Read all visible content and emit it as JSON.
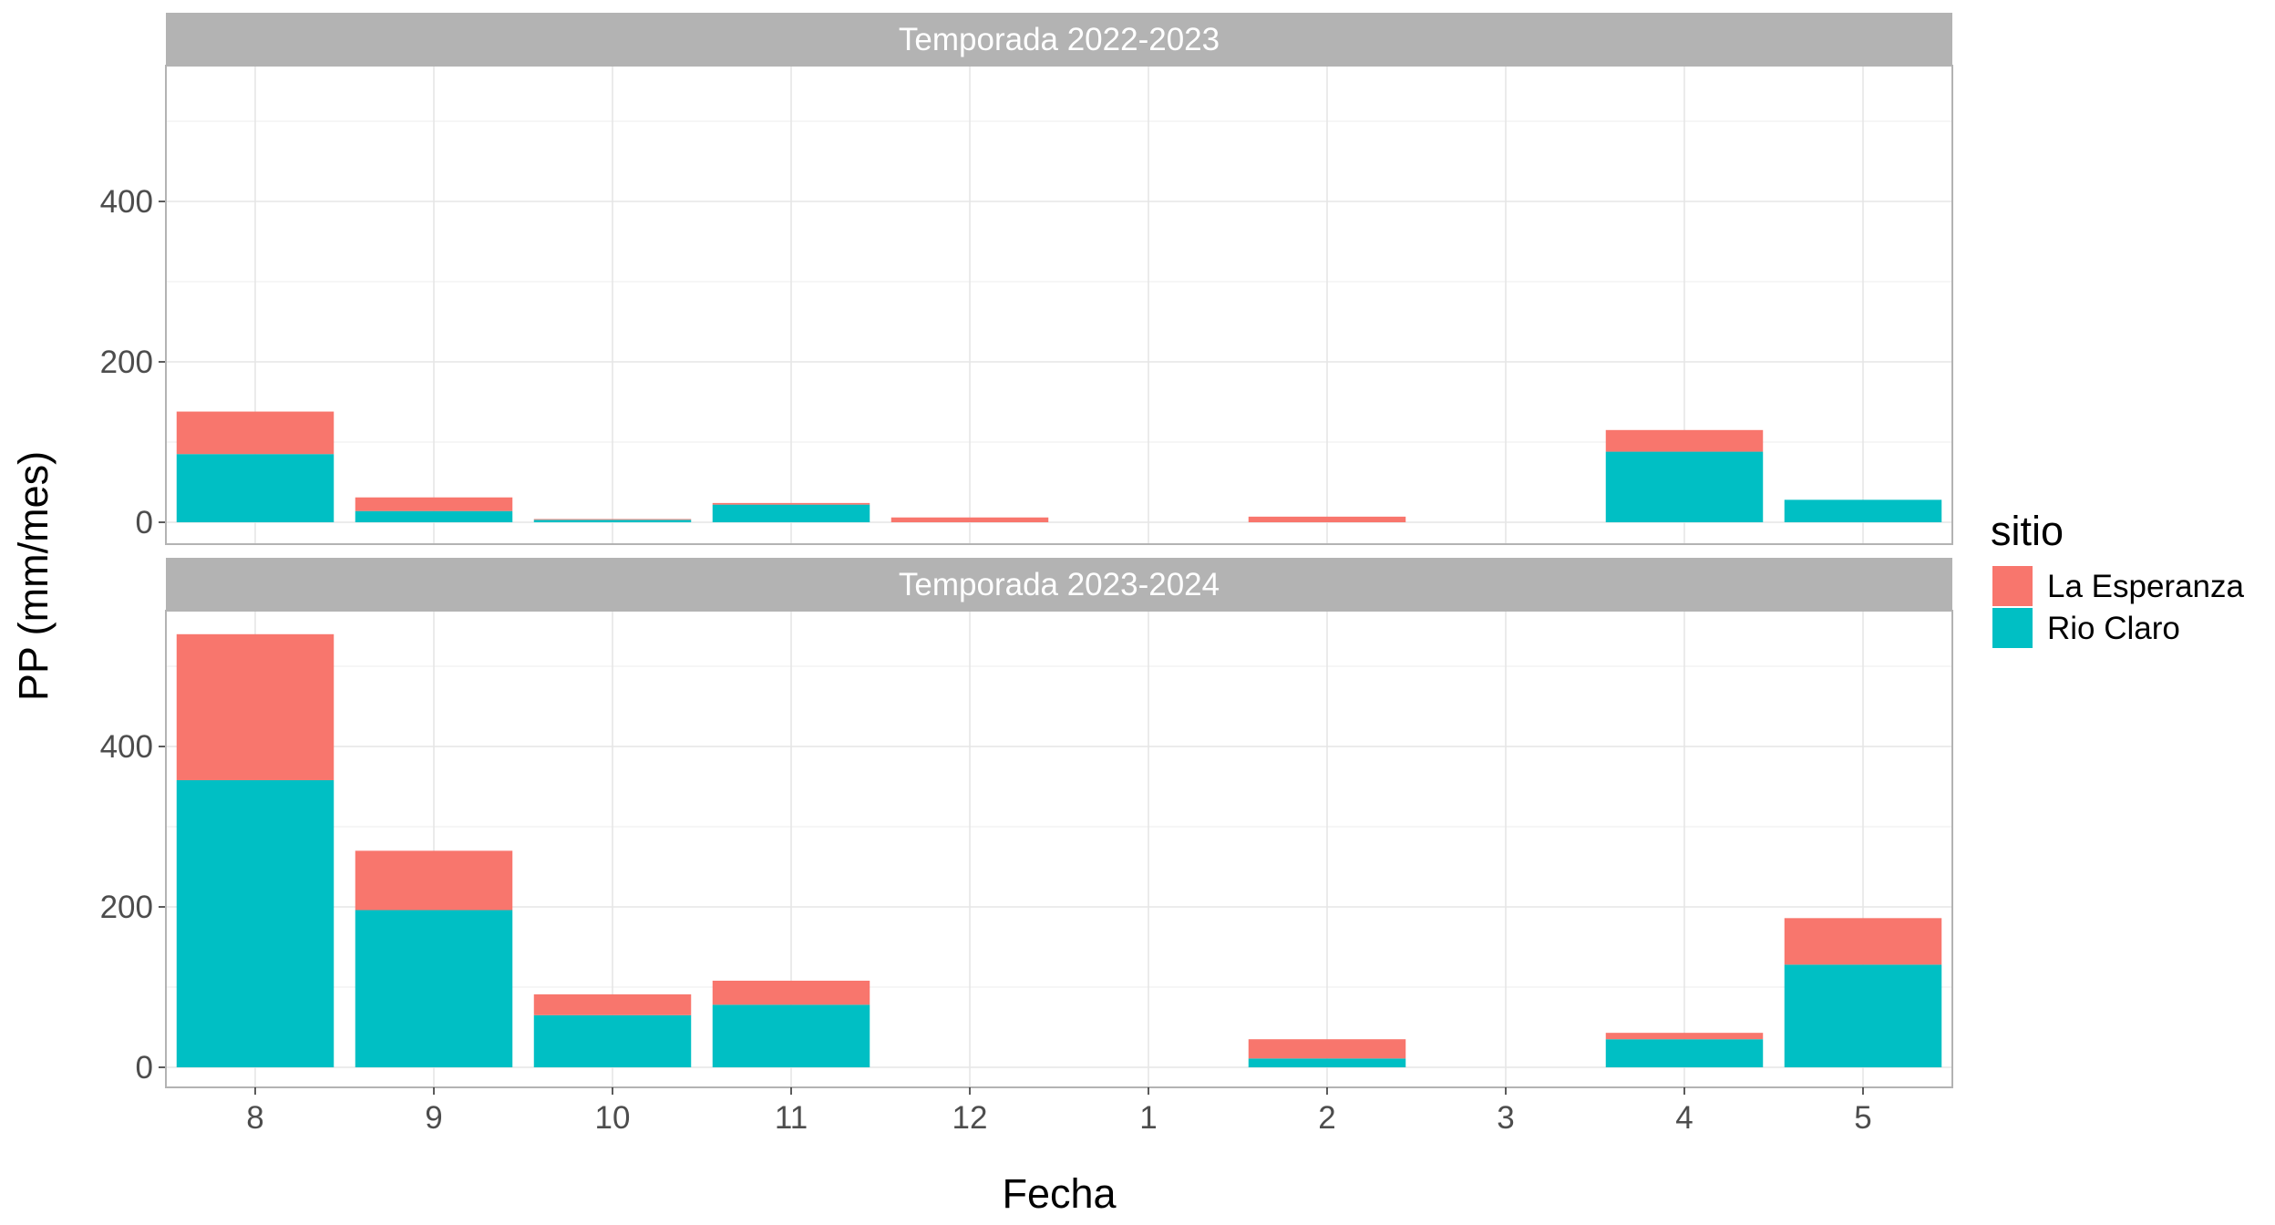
{
  "chart_data": {
    "type": "bar",
    "stacked": true,
    "xlabel": "Fecha",
    "ylabel": "PP (mm/mes)",
    "categories": [
      "8",
      "9",
      "10",
      "11",
      "12",
      "1",
      "2",
      "3",
      "4",
      "5"
    ],
    "ylim": [
      0,
      560
    ],
    "yticks": [
      "0",
      "200",
      "400"
    ],
    "ytick_values": [
      0,
      200,
      400
    ],
    "grid": true,
    "legend": {
      "title": "sitio",
      "placement": "right",
      "entries": [
        "La Esperanza",
        "Rio Claro"
      ]
    },
    "colors": {
      "La Esperanza": "#F8766D",
      "Rio Claro": "#00BFC4"
    },
    "facets": [
      {
        "title": "Temporada 2022-2023",
        "series": [
          {
            "name": "Rio Claro",
            "values": [
              85,
              14,
              3,
              22,
              0,
              0,
              0,
              0,
              88,
              28
            ]
          },
          {
            "name": "La Esperanza",
            "values": [
              53,
              17,
              1,
              2,
              6,
              0,
              7,
              0,
              27,
              0
            ]
          }
        ]
      },
      {
        "title": "Temporada 2023-2024",
        "series": [
          {
            "name": "Rio Claro",
            "values": [
              358,
              196,
              65,
              78,
              0,
              0,
              11,
              0,
              35,
              128
            ]
          },
          {
            "name": "La Esperanza",
            "values": [
              182,
              74,
              26,
              30,
              0,
              0,
              24,
              0,
              8,
              58
            ]
          }
        ]
      }
    ]
  }
}
